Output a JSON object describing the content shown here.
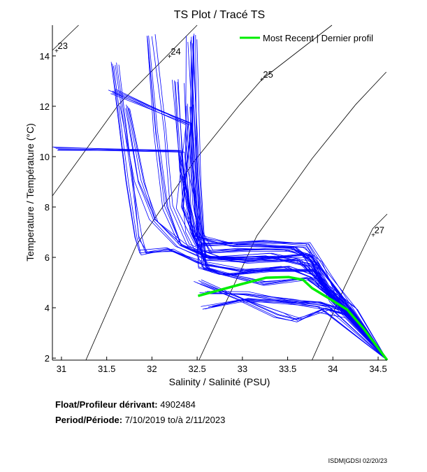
{
  "chart_data": {
    "type": "line",
    "title": "TS Plot / Tracé TS",
    "xlabel": "Salinity / Salinité (PSU)",
    "ylabel": "Temperature / Température (°C)",
    "xlim": [
      30.9,
      34.6
    ],
    "ylim": [
      1.92,
      15.22
    ],
    "xticks": [
      31,
      31.5,
      32,
      32.5,
      33,
      33.5,
      34,
      34.5
    ],
    "xtick_labels": [
      "31",
      "31.5",
      "32",
      "32.5",
      "33",
      "33.5",
      "34",
      "34.5"
    ],
    "yticks": [
      2,
      4,
      6,
      8,
      10,
      12,
      14
    ],
    "ytick_labels": [
      "2",
      "4",
      "6",
      "8",
      "10",
      "12",
      "14"
    ],
    "grid": false,
    "legend": {
      "placement": "top-right",
      "entries": [
        {
          "label": "Most Recent | Dernier profil",
          "color": "#00ee00"
        }
      ]
    },
    "isopycnals": [
      {
        "label": "23",
        "label_at": [
          30.95,
          14.22
        ],
        "points": [
          [
            30.9,
            14.22
          ],
          [
            31.19,
            15.22
          ]
        ]
      },
      {
        "label": "24",
        "label_at": [
          32.2,
          14.0
        ],
        "points": [
          [
            30.9,
            8.44
          ],
          [
            31.63,
            12.06
          ],
          [
            32.5,
            15.22
          ]
        ]
      },
      {
        "label": "25",
        "label_at": [
          33.22,
          13.08
        ],
        "points": [
          [
            31.27,
            1.92
          ],
          [
            31.83,
            6.5
          ],
          [
            32.47,
            9.83
          ],
          [
            32.97,
            12.06
          ],
          [
            33.22,
            13.08
          ],
          [
            33.99,
            15.22
          ]
        ]
      },
      {
        "label": "",
        "label_at": null,
        "points": [
          [
            32.52,
            1.92
          ],
          [
            33.16,
            6.86
          ],
          [
            33.77,
            9.92
          ],
          [
            34.25,
            12.06
          ],
          [
            34.59,
            13.36
          ]
        ]
      },
      {
        "label": "27",
        "label_at": [
          34.45,
          6.9
        ],
        "points": [
          [
            33.77,
            1.92
          ],
          [
            34.13,
            4.83
          ],
          [
            34.44,
            7.14
          ],
          [
            34.6,
            7.72
          ]
        ]
      }
    ],
    "series": [
      {
        "name": "All profiles",
        "color": "#0000ff",
        "profiles": [
          [
            [
              32.45,
              14.8
            ],
            [
              32.42,
              10
            ],
            [
              32.5,
              7
            ],
            [
              32.6,
              6.2
            ],
            [
              33.0,
              6.3
            ],
            [
              33.5,
              6.3
            ],
            [
              33.75,
              6.0
            ],
            [
              33.9,
              4.8
            ],
            [
              34.2,
              3.9
            ],
            [
              34.6,
              1.92
            ]
          ],
          [
            [
              32.4,
              12
            ],
            [
              32.45,
              8
            ],
            [
              32.55,
              6
            ],
            [
              33,
              5.8
            ],
            [
              33.6,
              5.9
            ],
            [
              33.85,
              5.0
            ],
            [
              34.1,
              4.0
            ],
            [
              34.6,
              1.92
            ]
          ],
          [
            [
              32.5,
              5
            ],
            [
              33,
              4.3
            ],
            [
              33.4,
              3.7
            ],
            [
              33.6,
              3.5
            ],
            [
              33.9,
              3.9
            ],
            [
              34.2,
              3.6
            ],
            [
              34.6,
              1.92
            ]
          ],
          [
            [
              32.55,
              4.6
            ],
            [
              33,
              4.6
            ],
            [
              33.5,
              4.3
            ],
            [
              33.8,
              4.2
            ],
            [
              34.1,
              3.9
            ],
            [
              34.6,
              1.92
            ]
          ],
          [
            [
              31.6,
              13.7
            ],
            [
              31.75,
              9
            ],
            [
              31.85,
              6.8
            ],
            [
              31.9,
              6.2
            ],
            [
              32.2,
              6.3
            ],
            [
              32.55,
              5.8
            ],
            [
              33,
              5.5
            ],
            [
              33.5,
              5.6
            ],
            [
              33.8,
              5.2
            ],
            [
              34.1,
              4.1
            ],
            [
              34.6,
              1.92
            ]
          ],
          [
            [
              31.55,
              12.6
            ],
            [
              32.4,
              11.3
            ],
            [
              32.3,
              8
            ],
            [
              32.5,
              6.5
            ],
            [
              33.2,
              6.6
            ],
            [
              33.7,
              6.5
            ],
            [
              33.9,
              5.4
            ],
            [
              34.2,
              3.9
            ],
            [
              34.6,
              1.92
            ]
          ],
          [
            [
              30.9,
              10.3
            ],
            [
              32.3,
              10.2
            ],
            [
              32.4,
              7
            ],
            [
              32.6,
              5.5
            ],
            [
              33.2,
              5
            ],
            [
              33.7,
              5.2
            ],
            [
              34,
              4.4
            ],
            [
              34.6,
              1.92
            ]
          ],
          [
            [
              32.0,
              14.8
            ],
            [
              32.1,
              11
            ],
            [
              32.2,
              8
            ],
            [
              32.35,
              6.5
            ],
            [
              32.7,
              6
            ],
            [
              33.3,
              6.1
            ],
            [
              33.8,
              5.7
            ],
            [
              34.1,
              4.2
            ],
            [
              34.6,
              1.92
            ]
          ],
          [
            [
              32.45,
              14.6
            ],
            [
              32.5,
              9
            ],
            [
              32.55,
              5.6
            ],
            [
              32.8,
              5.3
            ],
            [
              33.3,
              5.5
            ],
            [
              33.8,
              5.5
            ],
            [
              34.05,
              4.3
            ],
            [
              34.6,
              1.92
            ]
          ],
          [
            [
              31.7,
              12
            ],
            [
              31.85,
              9
            ],
            [
              32.0,
              7.5
            ],
            [
              32.3,
              6.5
            ],
            [
              32.6,
              6
            ],
            [
              33.1,
              5.9
            ],
            [
              33.7,
              6.1
            ],
            [
              33.95,
              5
            ],
            [
              34.6,
              1.92
            ]
          ],
          [
            [
              32.6,
              4.0
            ],
            [
              33.0,
              4.3
            ],
            [
              33.5,
              4.2
            ],
            [
              33.9,
              4.0
            ],
            [
              34.6,
              1.92
            ]
          ],
          [
            [
              32.3,
              13
            ],
            [
              32.35,
              9.5
            ],
            [
              32.5,
              6.8
            ],
            [
              32.9,
              6.5
            ],
            [
              33.6,
              6.4
            ],
            [
              33.8,
              5.8
            ],
            [
              34.0,
              4.3
            ],
            [
              34.6,
              1.92
            ]
          ]
        ]
      },
      {
        "name": "Most Recent | Dernier profil",
        "color": "#00ee00",
        "points": [
          [
            32.51,
            4.47
          ],
          [
            32.97,
            4.92
          ],
          [
            33.26,
            5.19
          ],
          [
            33.51,
            5.22
          ],
          [
            33.67,
            5.11
          ],
          [
            33.77,
            4.78
          ],
          [
            33.87,
            4.56
          ],
          [
            34.0,
            4.28
          ],
          [
            34.16,
            3.92
          ],
          [
            34.34,
            3.17
          ],
          [
            34.6,
            1.92
          ]
        ]
      }
    ]
  },
  "info": {
    "float_label": "Float/Profileur dérivant:",
    "float_id": "4902484",
    "period_label": "Period/Période:",
    "period_start": "7/10/2019",
    "period_sep": "to/à",
    "period_end": "2/11/2023"
  },
  "footer": "ISDM|GDSI 02/20/23"
}
